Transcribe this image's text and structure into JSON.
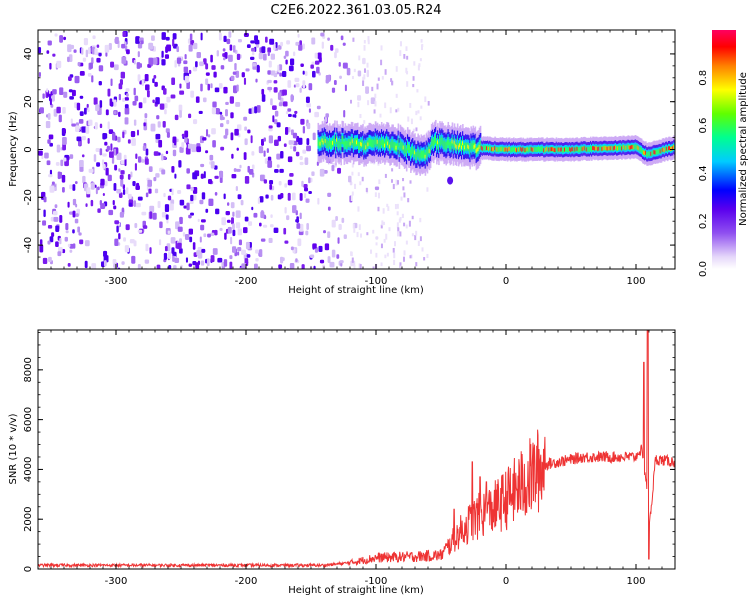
{
  "title": "C2E6.2022.361.03.05.R24",
  "chart_data": [
    {
      "type": "heatmap",
      "xlabel": "Height of straight line (km)",
      "ylabel": "Frequency (Hz)",
      "xlim": [
        -360,
        130
      ],
      "ylim": [
        -50,
        50
      ],
      "xticks": [
        -300,
        -200,
        -100,
        0,
        100
      ],
      "yticks": [
        -40,
        -20,
        0,
        20,
        40
      ],
      "colorbar": {
        "label": "Normalized spectral amplitude",
        "range": [
          0.0,
          1.0
        ],
        "ticks": [
          0.0,
          0.2,
          0.4,
          0.6,
          0.8
        ],
        "colors": [
          "#ffffff",
          "#b48cf0",
          "#7000ee",
          "#0000ff",
          "#00c8ff",
          "#00ff80",
          "#60ff00",
          "#ffff00",
          "#ff8000",
          "#ff0000",
          "#ff0080"
        ]
      },
      "features": {
        "noise_region_x": [
          -360,
          -120
        ],
        "sparse_region_x": [
          -120,
          -60
        ],
        "signal_start_x": -145,
        "signal_center_y": [
          {
            "x": -140,
            "y": 3
          },
          {
            "x": -110,
            "y": 2
          },
          {
            "x": -95,
            "y": 3
          },
          {
            "x": -80,
            "y": 1
          },
          {
            "x": -65,
            "y": -3
          },
          {
            "x": -55,
            "y": 3
          },
          {
            "x": -30,
            "y": 1
          },
          {
            "x": 0,
            "y": 0
          },
          {
            "x": 50,
            "y": 0
          },
          {
            "x": 100,
            "y": 1
          },
          {
            "x": 108,
            "y": -2
          },
          {
            "x": 130,
            "y": 1
          }
        ]
      }
    },
    {
      "type": "line",
      "xlabel": "Height of straight line (km)",
      "ylabel": "SNR (10 * v/v)",
      "xlim": [
        -360,
        130
      ],
      "ylim": [
        0,
        9600
      ],
      "xticks": [
        -300,
        -200,
        -100,
        0,
        100
      ],
      "yticks": [
        0,
        2000,
        4000,
        6000,
        8000
      ],
      "series": [
        {
          "color": "#ee3333",
          "envelope": [
            {
              "x": -360,
              "y": 150
            },
            {
              "x": -140,
              "y": 150
            },
            {
              "x": -120,
              "y": 250
            },
            {
              "x": -100,
              "y": 450
            },
            {
              "x": -70,
              "y": 500
            },
            {
              "x": -50,
              "y": 550
            },
            {
              "x": -35,
              "y": 1500
            },
            {
              "x": -25,
              "y": 2000
            },
            {
              "x": -10,
              "y": 2400
            },
            {
              "x": 0,
              "y": 2800
            },
            {
              "x": 15,
              "y": 3500
            },
            {
              "x": 30,
              "y": 4200
            },
            {
              "x": 60,
              "y": 4500
            },
            {
              "x": 100,
              "y": 4500
            },
            {
              "x": 104,
              "y": 4800
            },
            {
              "x": 108,
              "y": 3500
            },
            {
              "x": 110,
              "y": 1500
            },
            {
              "x": 115,
              "y": 4400
            },
            {
              "x": 130,
              "y": 4300
            }
          ],
          "spikes": [
            {
              "x": -40,
              "y": 2400
            },
            {
              "x": -26,
              "y": 4300
            },
            {
              "x": -20,
              "y": 3700
            },
            {
              "x": -15,
              "y": 3500
            },
            {
              "x": 102,
              "y": 4600
            },
            {
              "x": 106,
              "y": 8300
            },
            {
              "x": 109,
              "y": 9600
            },
            {
              "x": 110,
              "y": 400
            }
          ]
        }
      ]
    }
  ]
}
